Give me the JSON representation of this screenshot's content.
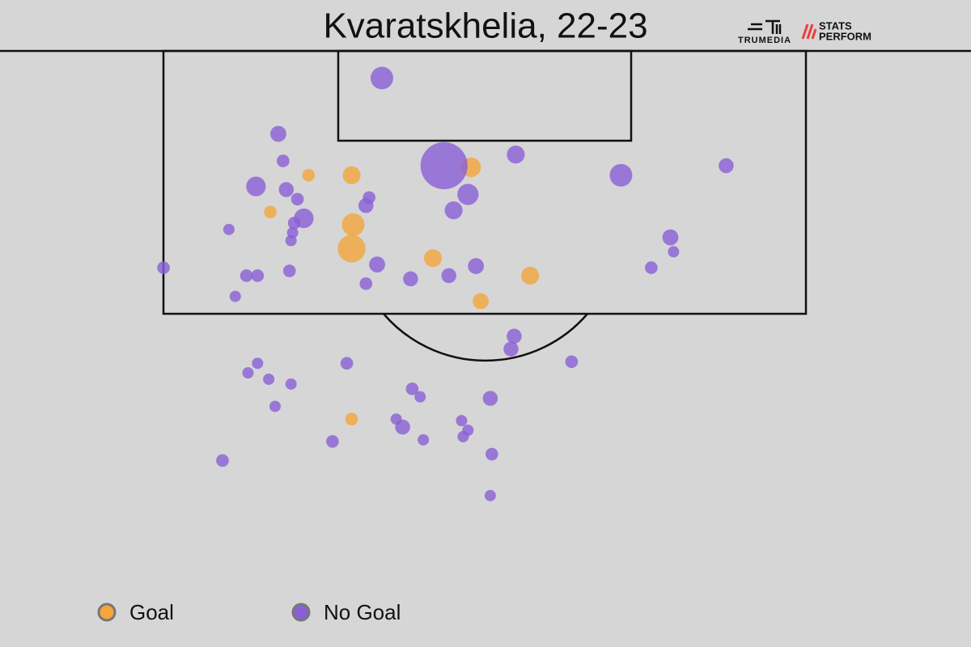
{
  "chart_data": {
    "type": "scatter",
    "title": "Kvaratskhelia, 22-23",
    "xlim": [
      -30.46,
      30.46
    ],
    "ylim": [
      0,
      37.4
    ],
    "series": [
      {
        "name": "Goal",
        "color": "#f4a53c",
        "x": [
          -11.1,
          -8.4,
          -0.9,
          -13.5,
          -8.3,
          -8.4,
          -3.3,
          2.8,
          -0.3,
          -8.4
        ],
        "values": [
          7.8,
          7.8,
          7.3,
          10.1,
          10.9,
          12.4,
          13.0,
          14.1,
          15.7,
          23.1
        ],
        "sizes": [
          0.05,
          0.1,
          0.12,
          0.05,
          0.16,
          0.24,
          0.1,
          0.1,
          0.08,
          0.05
        ]
      },
      {
        "name": "No Goal",
        "color": "#8a5fd6",
        "x": [
          -6.5,
          -13.0,
          -12.7,
          1.9,
          -2.6,
          8.5,
          15.1,
          -14.4,
          -12.5,
          -11.8,
          -7.3,
          -7.5,
          -1.1,
          -2.0,
          -11.4,
          -12.0,
          -12.1,
          -12.2,
          -16.1,
          11.6,
          11.8,
          -20.2,
          -15.0,
          -14.3,
          -12.3,
          -6.8,
          -0.6,
          -4.7,
          -2.3,
          -7.5,
          10.4,
          -15.7,
          1.8,
          1.6,
          5.4,
          -8.7,
          -14.3,
          -14.9,
          -13.6,
          -12.2,
          -4.6,
          -4.1,
          0.3,
          -13.2,
          -5.6,
          -5.2,
          -1.5,
          -1.1,
          -1.4,
          -3.9,
          -9.6,
          0.4,
          -16.5,
          0.3
        ],
        "values": [
          1.7,
          5.2,
          6.9,
          6.5,
          7.2,
          7.8,
          7.2,
          8.5,
          8.7,
          9.3,
          9.2,
          9.7,
          9.0,
          10.0,
          10.5,
          10.8,
          11.4,
          11.9,
          11.2,
          11.7,
          12.6,
          13.6,
          14.1,
          14.1,
          13.8,
          13.4,
          13.5,
          14.3,
          14.1,
          14.6,
          13.6,
          15.4,
          17.9,
          18.7,
          19.5,
          19.6,
          19.6,
          20.2,
          20.6,
          20.9,
          21.2,
          21.7,
          21.8,
          22.3,
          23.1,
          23.6,
          23.2,
          23.8,
          24.2,
          24.4,
          24.5,
          25.3,
          25.7,
          27.9
        ],
        "sizes": [
          0.16,
          0.08,
          0.05,
          0.1,
          0.69,
          0.16,
          0.07,
          0.12,
          0.07,
          0.05,
          0.05,
          0.07,
          0.14,
          0.1,
          0.12,
          0.05,
          0.04,
          0.04,
          0.04,
          0.08,
          0.04,
          0.05,
          0.05,
          0.05,
          0.05,
          0.08,
          0.08,
          0.07,
          0.07,
          0.05,
          0.05,
          0.04,
          0.07,
          0.07,
          0.05,
          0.05,
          0.04,
          0.04,
          0.04,
          0.04,
          0.05,
          0.04,
          0.07,
          0.04,
          0.04,
          0.07,
          0.04,
          0.04,
          0.04,
          0.04,
          0.05,
          0.05,
          0.05,
          0.04
        ]
      }
    ]
  },
  "branding": {
    "trumedia": "TRUMEDIA",
    "stats": "STATS",
    "perform": "PERFORM"
  }
}
